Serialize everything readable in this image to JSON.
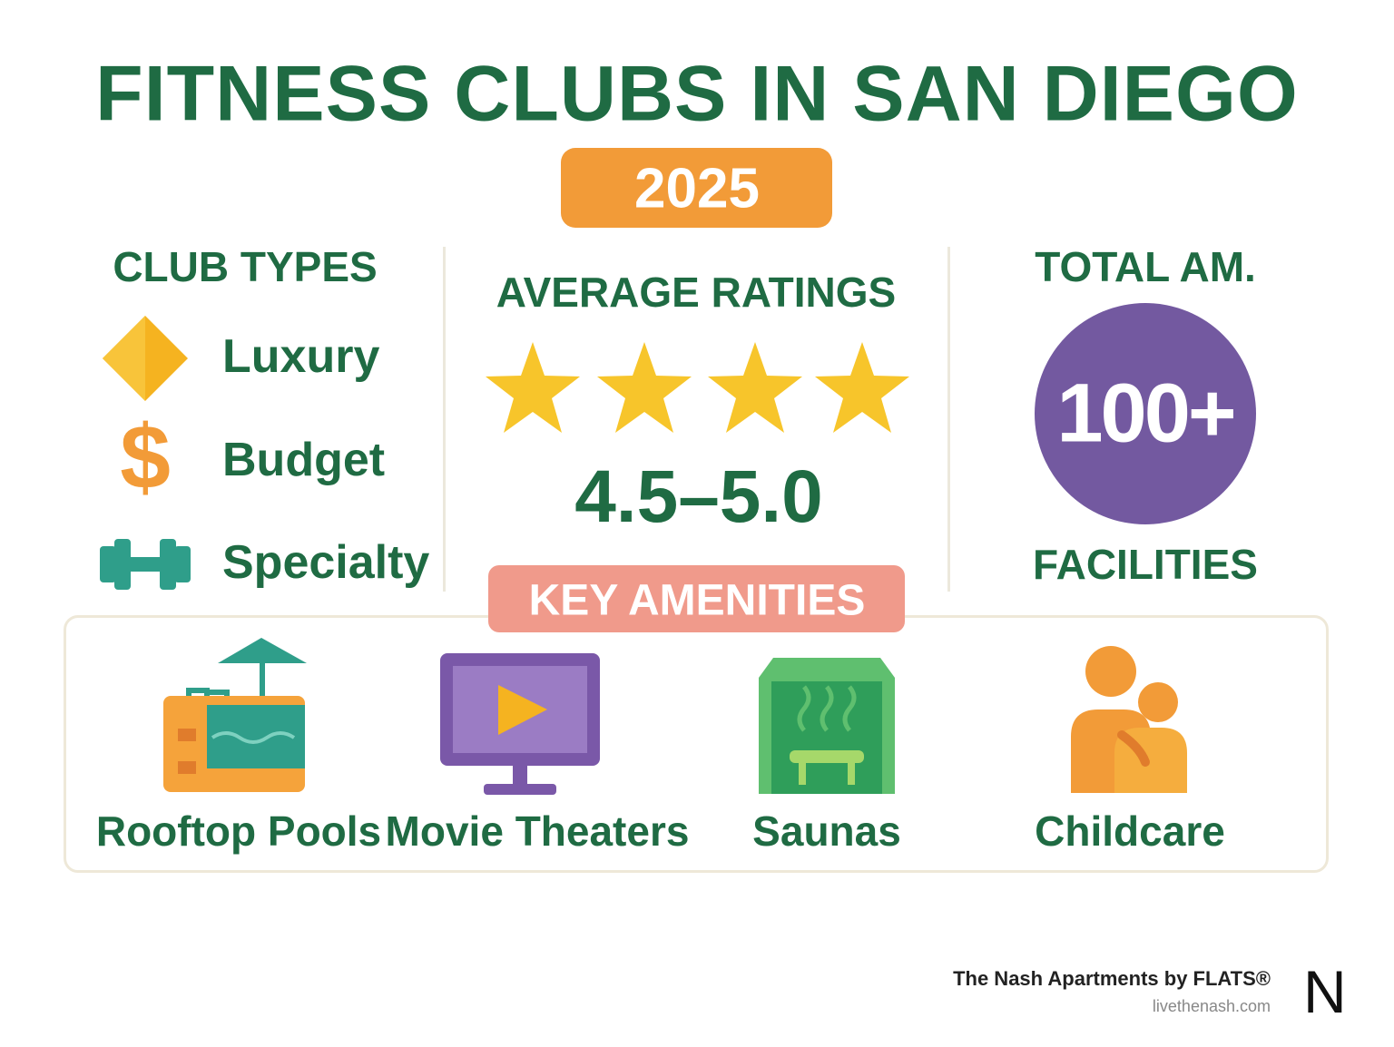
{
  "header": {
    "title": "FITNESS CLUBS IN SAN DIEGO",
    "year": "2025"
  },
  "club_types": {
    "heading": "CLUB TYPES",
    "items": [
      "Luxury",
      "Budget",
      "Specialty"
    ]
  },
  "ratings": {
    "heading": "AVERAGE RATINGS",
    "range": "4.5–5.0"
  },
  "total": {
    "heading": "TOTAL AM.",
    "count": "100+",
    "caption": "FACILITIES"
  },
  "amenities": {
    "heading": "KEY AMENITIES",
    "items": [
      "Rooftop Pools",
      "Movie Theaters",
      "Saunas",
      "Childcare"
    ]
  },
  "footer": {
    "brand": "The Nash Apartments by FLATS®",
    "url": "livethenash.com",
    "logo": "N"
  }
}
